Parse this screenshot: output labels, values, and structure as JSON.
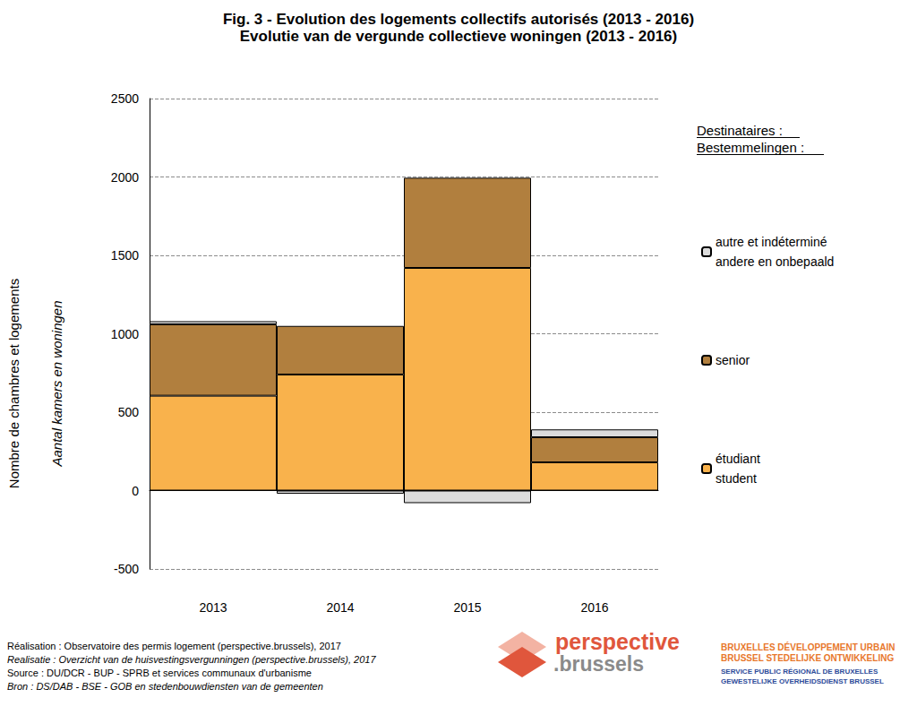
{
  "chart_data": {
    "type": "bar",
    "title": "Fig. 3 - Evolution des logements collectifs autorisés (2013 - 2016)",
    "subtitle": "Evolutie van de vergunde collectieve woningen (2013 - 2016)",
    "y_label": "Nombre de chambres et logements",
    "y_label2": "Aantal kamers en woningen",
    "legend_title": "Destinataires :\nBestemmelingen :",
    "categories": [
      "2013",
      "2014",
      "2015",
      "2016"
    ],
    "series": [
      {
        "name": "étudiant\nstudent",
        "color": "#f9b24c",
        "values": [
          605,
          740,
          1420,
          180
        ]
      },
      {
        "name": "senior",
        "color": "#b17f3e",
        "values": [
          455,
          310,
          575,
          160
        ]
      },
      {
        "name": "autre et indéterminé\nandere en onbepaald",
        "color": "#dcdcdc",
        "values": [
          20,
          -20,
          -80,
          50
        ]
      }
    ],
    "stacked": true,
    "ylim": [
      -500,
      2500
    ],
    "yticks": [
      -500,
      0,
      500,
      1000,
      1500,
      2000,
      2500
    ],
    "grid": true,
    "legend": "right",
    "footer": [
      "Réalisation : Observatoire des permis logement (perspective.brussels), 2017",
      "Realisatie : Overzicht van de huisvestingsvergunningen (perspective.brussels), 2017",
      "Source : DU/DCR - BUP - SPRB et services communaux d'urbanisme",
      "Bron : DS/DAB - BSE - GOB en stedenbouwdiensten van de gemeenten"
    ],
    "logos": [
      "perspective",
      ".brussels",
      "BRUXELLES DÉVELOPPEMENT URBAIN",
      "BRUSSEL STEDELIJKE ONTWIKKELING",
      "SERVICE PUBLIC RÉGIONAL DE BRUXELLES",
      "GEWESTELIJKE OVERHEIDSDIENST BRUSSEL"
    ]
  }
}
